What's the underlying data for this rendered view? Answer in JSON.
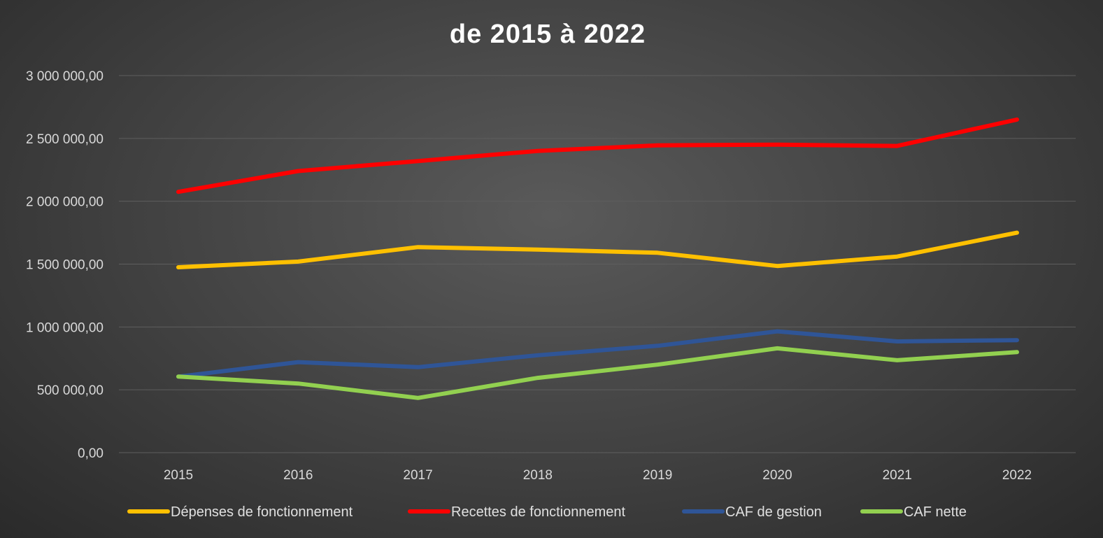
{
  "chart_data": {
    "type": "line",
    "title": "de 2015 à 2022",
    "xlabel": "",
    "ylabel": "",
    "categories": [
      "2015",
      "2016",
      "2017",
      "2018",
      "2019",
      "2020",
      "2021",
      "2022"
    ],
    "ylim": [
      0,
      3000000
    ],
    "yticks": [
      0,
      500000,
      1000000,
      1500000,
      2000000,
      2500000,
      3000000
    ],
    "ytick_labels": [
      "0,00",
      "500 000,00",
      "1 000 000,00",
      "1 500 000,00",
      "2 000 000,00",
      "2 500 000,00",
      "3 000 000,00"
    ],
    "grid": true,
    "legend_position": "bottom",
    "series": [
      {
        "name": "Dépenses de fonctionnement",
        "color": "#ffc000",
        "values": [
          1475000,
          1520000,
          1635000,
          1615000,
          1590000,
          1485000,
          1560000,
          1750000
        ]
      },
      {
        "name": "Recettes de fonctionnement",
        "color": "#ff0000",
        "values": [
          2075000,
          2240000,
          2320000,
          2400000,
          2445000,
          2450000,
          2440000,
          2650000
        ]
      },
      {
        "name": "CAF de gestion",
        "color": "#2f5597",
        "values": [
          605000,
          720000,
          680000,
          775000,
          850000,
          965000,
          885000,
          895000
        ]
      },
      {
        "name": "CAF nette",
        "color": "#92d050",
        "values": [
          605000,
          550000,
          435000,
          595000,
          700000,
          830000,
          735000,
          800000
        ]
      }
    ]
  }
}
